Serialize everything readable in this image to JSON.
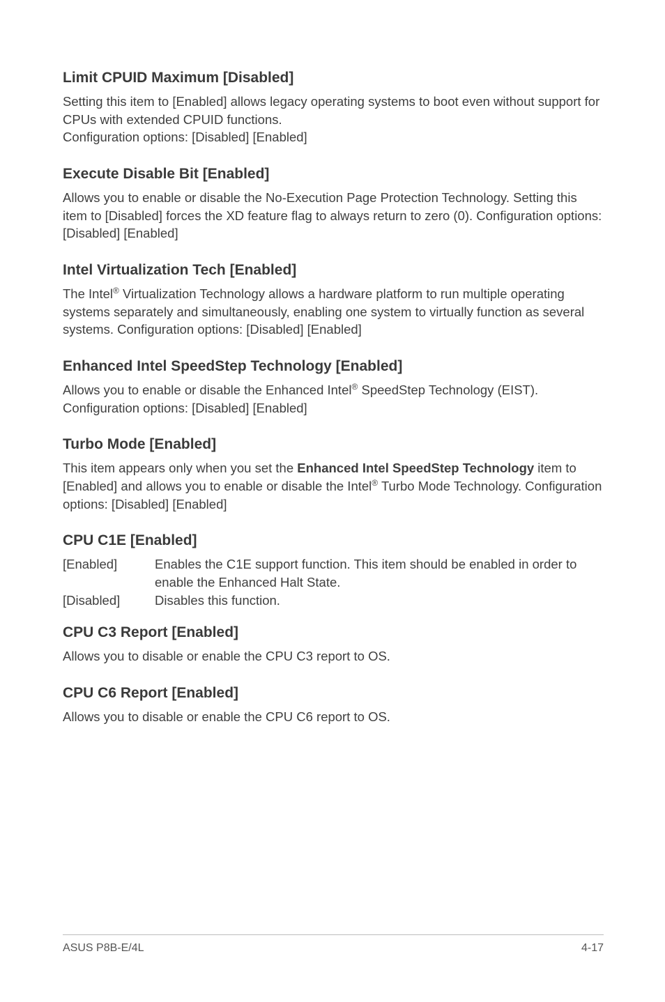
{
  "sections": {
    "limitCpuid": {
      "heading": "Limit CPUID Maximum [Disabled]",
      "body": "Setting this item to [Enabled] allows legacy operating systems to boot even without support for CPUs with extended CPUID functions.\nConfiguration options: [Disabled] [Enabled]"
    },
    "executeDisable": {
      "heading": "Execute Disable Bit [Enabled]",
      "body": "Allows you to enable or disable the No-Execution Page Protection Technology. Setting this item to [Disabled] forces the XD feature flag to always return to zero (0). Configuration options: [Disabled] [Enabled]"
    },
    "intelVirt": {
      "heading": "Intel Virtualization Tech [Enabled]",
      "body_pre": "The Intel",
      "body_post": " Virtualization Technology allows a hardware platform to run multiple operating systems separately and simultaneously, enabling one system to virtually function as several systems. Configuration options: [Disabled] [Enabled]"
    },
    "speedstep": {
      "heading": "Enhanced Intel SpeedStep Technology [Enabled]",
      "body_pre": "Allows you to enable or disable the Enhanced Intel",
      "body_post": " SpeedStep Technology (EIST). Configuration options: [Disabled] [Enabled]"
    },
    "turbo": {
      "heading": "Turbo Mode [Enabled]",
      "body_pre": "This item appears only when you set the ",
      "bold": "Enhanced Intel SpeedStep Technology",
      "body_mid": " item to [Enabled] and allows you to enable or disable the Intel",
      "body_post": " Turbo Mode Technology. Configuration options: [Disabled] [Enabled]"
    },
    "c1e": {
      "heading": "CPU C1E [Enabled]",
      "rows": [
        {
          "term": "[Enabled]",
          "desc": "Enables the C1E support function. This item should be enabled in order to enable the Enhanced Halt State."
        },
        {
          "term": "[Disabled]",
          "desc": "Disables this function."
        }
      ]
    },
    "c3": {
      "heading": "CPU C3 Report [Enabled]",
      "body": "Allows you to disable or enable the CPU C3 report to OS."
    },
    "c6": {
      "heading": "CPU C6 Report [Enabled]",
      "body": "Allows you to disable or enable the CPU C6 report to OS."
    }
  },
  "registered": "®",
  "footer": {
    "left": "ASUS P8B-E/4L",
    "right": "4-17"
  }
}
